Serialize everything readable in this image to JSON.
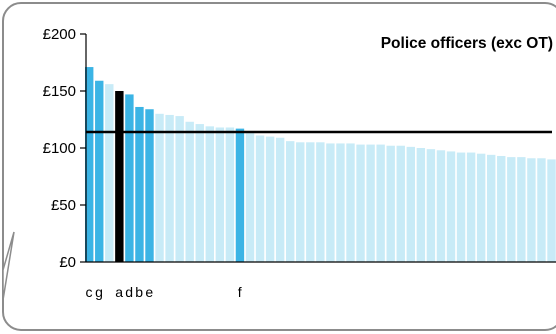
{
  "chart_data": {
    "type": "bar",
    "title": "Police officers (exc OT)",
    "xlabel": "",
    "ylabel": "",
    "ylim": [
      0,
      200
    ],
    "yticks": [
      "£0",
      "£50",
      "£100",
      "£150",
      "£200"
    ],
    "ytick_values": [
      0,
      50,
      100,
      150,
      200
    ],
    "reference_line": 114,
    "category_labels": [
      {
        "index": 0,
        "text": "c"
      },
      {
        "index": 1,
        "text": "g"
      },
      {
        "index": 3,
        "text": "a"
      },
      {
        "index": 4,
        "text": "d"
      },
      {
        "index": 5,
        "text": "b"
      },
      {
        "index": 6,
        "text": "e"
      },
      {
        "index": 15,
        "text": "f"
      }
    ],
    "values": [
      171,
      159,
      156,
      150,
      147,
      136,
      134,
      130,
      129,
      128,
      123,
      121,
      119,
      118,
      118,
      117,
      113,
      111,
      110,
      109,
      106,
      105,
      105,
      105,
      104,
      104,
      104,
      103,
      103,
      103,
      102,
      102,
      101,
      100,
      99,
      98,
      97,
      96,
      96,
      95,
      94,
      93,
      92,
      92,
      91,
      91,
      90,
      89
    ],
    "bar_kinds": [
      "medium",
      "medium",
      "light",
      "dark",
      "medium",
      "medium",
      "medium",
      "light",
      "light",
      "light",
      "light",
      "light",
      "light",
      "light",
      "light",
      "medium",
      "light",
      "light",
      "light",
      "light",
      "light",
      "light",
      "light",
      "light",
      "light",
      "light",
      "light",
      "light",
      "light",
      "light",
      "light",
      "light",
      "light",
      "light",
      "light",
      "light",
      "light",
      "light",
      "light",
      "light",
      "light",
      "light",
      "light",
      "light",
      "light",
      "light",
      "light",
      "light"
    ],
    "colors": {
      "medium": "#3bb4e5",
      "light": "#c8ebf7",
      "dark": "#000000",
      "reference_line": "#000000",
      "frame": "#8c8c8c"
    }
  }
}
